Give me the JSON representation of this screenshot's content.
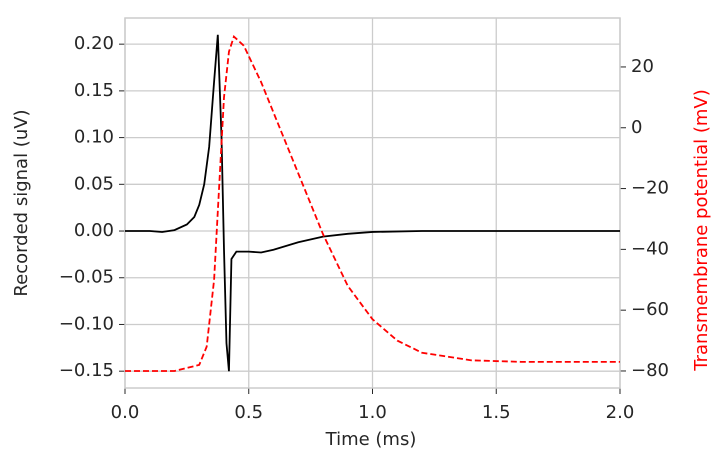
{
  "chart_data": {
    "type": "line",
    "xlabel": "Time (ms)",
    "ylabel": "Recorded signal (uV)",
    "y2label": "Transmembrane potential (mV)",
    "xlim": [
      0,
      2.0
    ],
    "ylim": [
      -0.168,
      0.228
    ],
    "y2lim": [
      -85.6,
      36.1
    ],
    "xticks": [
      {
        "value": 0,
        "label": "0.0"
      },
      0.5,
      {
        "value": 1,
        "label": "1.0"
      },
      1.5,
      {
        "value": 2,
        "label": "2.0"
      }
    ],
    "yticks": [
      {
        "value": -0.15,
        "label": "−0.15"
      },
      {
        "value": -0.1,
        "label": "−0.10"
      },
      {
        "value": -0.05,
        "label": "−0.05"
      },
      {
        "value": 0,
        "label": "0.00"
      },
      {
        "value": 0.05,
        "label": "0.05"
      },
      {
        "value": 0.1,
        "label": "0.10"
      },
      {
        "value": 0.15,
        "label": "0.15"
      },
      {
        "value": 0.2,
        "label": "0.20"
      }
    ],
    "y2ticks": [
      {
        "value": -80,
        "label": "−80"
      },
      {
        "value": -60,
        "label": "−60"
      },
      {
        "value": -40,
        "label": "−40"
      },
      {
        "value": -20,
        "label": "−20"
      },
      0,
      20
    ],
    "grid": true,
    "series": [
      {
        "color": "#000000",
        "dash": false,
        "x": [
          0,
          0.1,
          0.15,
          0.2,
          0.25,
          0.28,
          0.3,
          0.32,
          0.34,
          0.36,
          0.375,
          0.39,
          0.4,
          0.41,
          0.42,
          0.43,
          0.45,
          0.5,
          0.55,
          0.6,
          0.7,
          0.8,
          0.9,
          1.0,
          1.2,
          1.5,
          2.0
        ],
        "values": [
          0,
          0,
          -0.001,
          0.001,
          0.007,
          0.015,
          0.028,
          0.05,
          0.09,
          0.16,
          0.21,
          0.1,
          -0.02,
          -0.12,
          -0.15,
          -0.03,
          -0.022,
          -0.022,
          -0.023,
          -0.02,
          -0.012,
          -0.006,
          -0.003,
          -0.001,
          0,
          0,
          0
        ]
      },
      {
        "color": "#ff0000",
        "dash": true,
        "axis": "y2",
        "x": [
          0,
          0.2,
          0.3,
          0.33,
          0.36,
          0.38,
          0.4,
          0.42,
          0.44,
          0.48,
          0.55,
          0.6,
          0.7,
          0.8,
          0.9,
          1.0,
          1.1,
          1.2,
          1.4,
          1.6,
          2.0
        ],
        "values": [
          -80,
          -80,
          -78,
          -72,
          -50,
          -20,
          10,
          25,
          30,
          27,
          15,
          5,
          -15,
          -35,
          -52,
          -63,
          -70,
          -74,
          -76.5,
          -77,
          -77
        ]
      }
    ]
  }
}
